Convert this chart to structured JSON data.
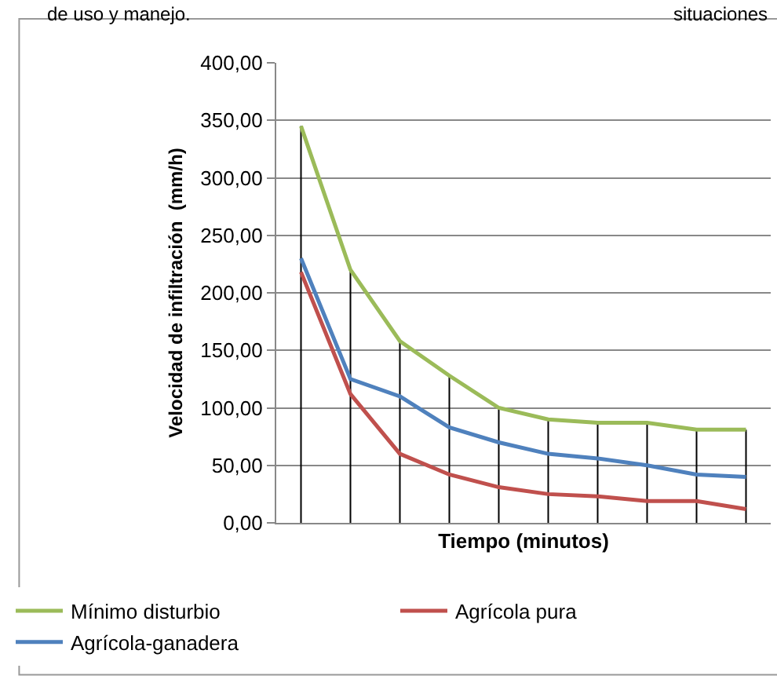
{
  "chart_data": {
    "type": "line",
    "xlabel": "Tiempo (minutos)",
    "ylabel": "Velocidad de infiltración  (mm/h)",
    "annotations": [
      "de uso y manejo.",
      "situaciones"
    ],
    "categories": [
      null,
      null,
      null,
      null,
      null,
      null,
      null,
      null,
      null,
      null
    ],
    "series": [
      {
        "name": "Agrícola pura",
        "color": "#c0504d",
        "values": [
          218,
          112,
          60,
          42,
          31,
          25,
          23,
          19,
          19,
          12
        ]
      },
      {
        "name": "Agrícola-ganadera",
        "color": "#4f81bd",
        "values": [
          230,
          125,
          110,
          83,
          70,
          60,
          56,
          50,
          42,
          40
        ]
      },
      {
        "name": "Mínimo disturbio",
        "color": "#9bbb59",
        "values": [
          345,
          220,
          158,
          128,
          100,
          90,
          87,
          87,
          81,
          81
        ],
        "errors": [
          [
            0,
            345
          ],
          [
            0,
            220
          ],
          [
            0,
            158
          ],
          [
            0,
            128
          ],
          [
            0,
            100
          ],
          [
            0,
            90
          ],
          [
            0,
            87
          ],
          [
            0,
            87
          ],
          [
            0,
            81
          ],
          [
            0,
            81
          ]
        ]
      }
    ],
    "ylim": [
      0,
      400
    ],
    "yticks": [
      {
        "value": 0,
        "label": "0,00"
      },
      {
        "value": 50,
        "label": "50,00"
      },
      {
        "value": 100,
        "label": "100,00"
      },
      {
        "value": 150,
        "label": "150,00"
      },
      {
        "value": 200,
        "label": "200,00"
      },
      {
        "value": 250,
        "label": "250,00"
      },
      {
        "value": 300,
        "label": "300,00"
      },
      {
        "value": 350,
        "label": "350,00"
      },
      {
        "value": 400,
        "label": "400,00"
      }
    ],
    "grid": "y",
    "legend": "bottom",
    "marker": "none",
    "line_style": "solid"
  }
}
